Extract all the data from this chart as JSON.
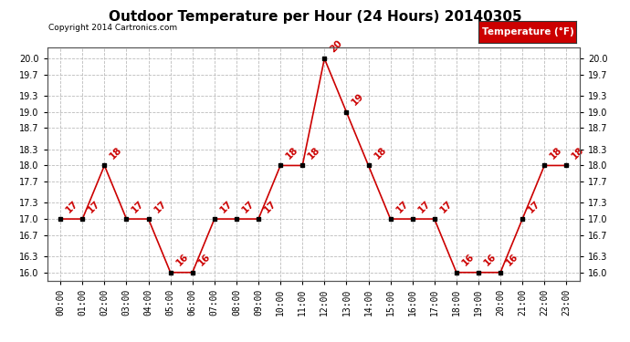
{
  "title": "Outdoor Temperature per Hour (24 Hours) 20140305",
  "copyright": "Copyright 2014 Cartronics.com",
  "legend_label": "Temperature (°F)",
  "hours": [
    0,
    1,
    2,
    3,
    4,
    5,
    6,
    7,
    8,
    9,
    10,
    11,
    12,
    13,
    14,
    15,
    16,
    17,
    18,
    19,
    20,
    21,
    22,
    23
  ],
  "hour_labels": [
    "00:00",
    "01:00",
    "02:00",
    "03:00",
    "04:00",
    "05:00",
    "06:00",
    "07:00",
    "08:00",
    "09:00",
    "10:00",
    "11:00",
    "12:00",
    "13:00",
    "14:00",
    "15:00",
    "16:00",
    "17:00",
    "18:00",
    "19:00",
    "20:00",
    "21:00",
    "22:00",
    "23:00"
  ],
  "temps": [
    17,
    17,
    18,
    17,
    17,
    16,
    16,
    17,
    17,
    17,
    18,
    18,
    20,
    19,
    18,
    17,
    17,
    17,
    16,
    16,
    16,
    17,
    18,
    18
  ],
  "ylim_min": 15.85,
  "ylim_max": 20.2,
  "yticks": [
    16.0,
    16.3,
    16.7,
    17.0,
    17.3,
    17.7,
    18.0,
    18.3,
    18.7,
    19.0,
    19.3,
    19.7,
    20.0
  ],
  "line_color": "#cc0000",
  "marker_color": "#000000",
  "bg_color": "#ffffff",
  "grid_color": "#bbbbbb",
  "title_fontsize": 11,
  "tick_fontsize": 7,
  "annotation_fontsize": 7.5,
  "copyright_fontsize": 6.5,
  "legend_bg": "#cc0000",
  "legend_text_color": "#ffffff",
  "legend_fontsize": 7.5
}
